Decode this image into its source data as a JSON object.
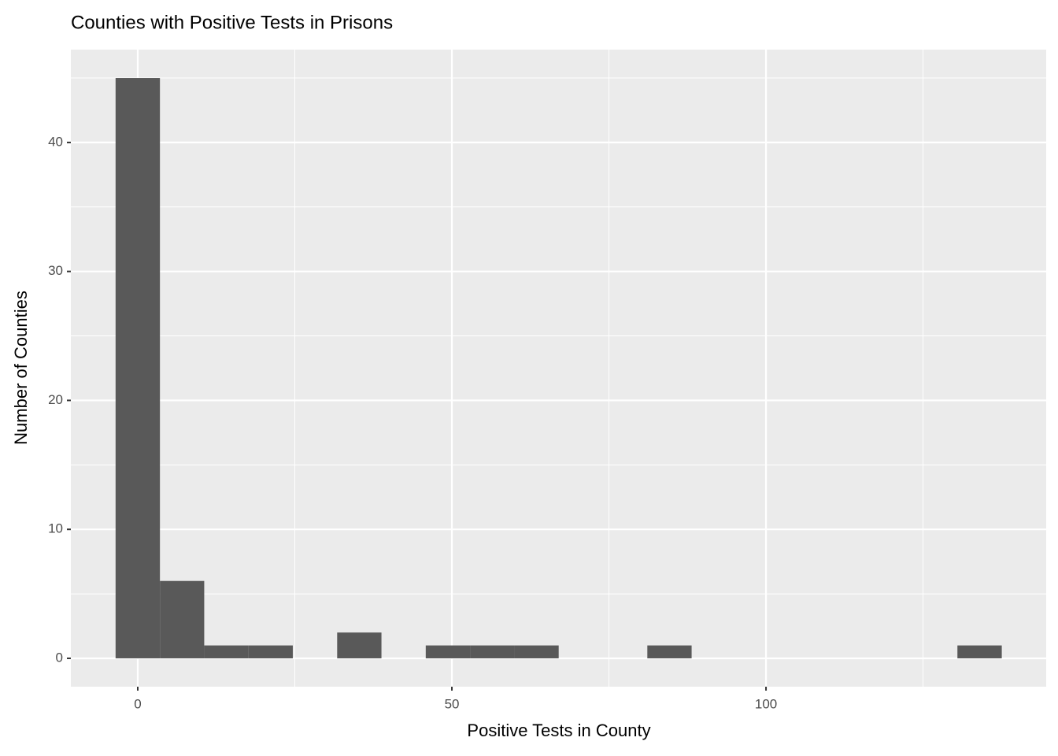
{
  "chart_data": {
    "type": "histogram",
    "title": "Counties with Positive Tests in Prisons",
    "x_label": "Positive Tests in County",
    "y_label": "Number of Counties",
    "bins": [
      -3.53,
      3.53,
      10.58,
      17.63,
      24.68,
      31.74,
      38.79,
      45.84,
      52.89,
      59.95,
      67.0,
      74.05,
      81.11,
      88.16,
      95.21,
      102.26,
      109.32,
      116.37,
      123.42,
      130.47,
      137.53
    ],
    "counts": [
      45,
      6,
      1,
      1,
      0,
      2,
      0,
      1,
      1,
      1,
      0,
      0,
      1,
      0,
      0,
      0,
      0,
      0,
      0,
      1
    ],
    "color": "#595959",
    "xlim": [
      -10.65,
      144.6
    ],
    "ylim": [
      -2.2,
      47.2
    ],
    "xticks": [
      0,
      50,
      100
    ],
    "yticks": [
      0,
      10,
      20,
      30,
      40
    ],
    "x_minor_ticks": [
      25,
      75,
      125
    ],
    "y_minor_ticks": [
      5,
      15,
      25,
      35,
      45
    ],
    "grid": true
  }
}
